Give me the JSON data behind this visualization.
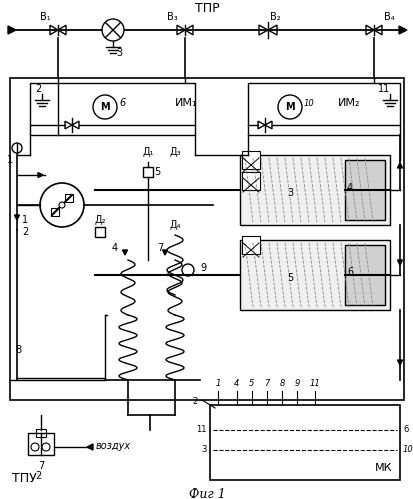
{
  "title_top": "ТПР",
  "title_bottom": "ТПУ",
  "caption": "Фиг 1",
  "bg_color": "#ffffff",
  "line_color": "#000000",
  "fig_width": 4.14,
  "fig_height": 4.99,
  "dpi": 100
}
